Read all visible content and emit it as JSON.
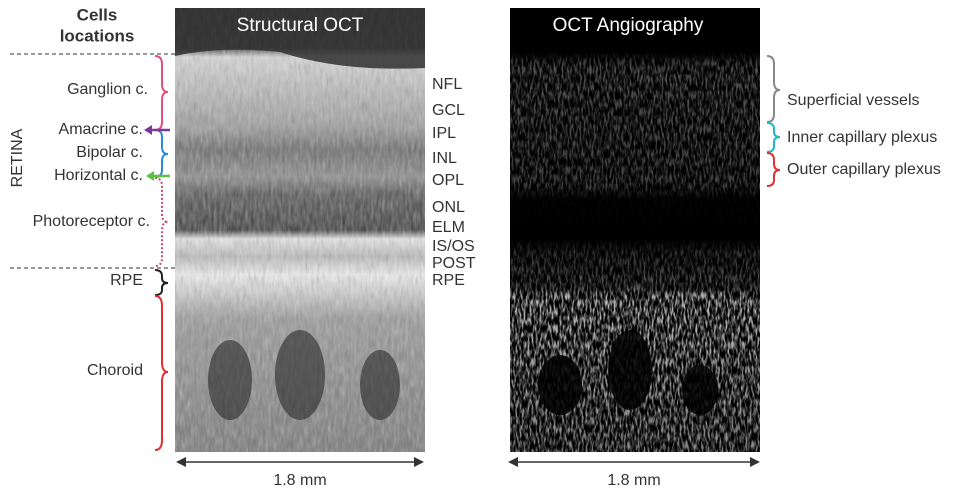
{
  "header": {
    "title_lines": [
      "Cells",
      "locations"
    ]
  },
  "panels": [
    {
      "title": "Structural OCT",
      "scale": "1.8 mm"
    },
    {
      "title": "OCT Angiography",
      "scale": "1.8 mm"
    }
  ],
  "region_label": "RETINA",
  "cell_labels": [
    "Ganglion c.",
    "Amacrine c.",
    "Bipolar c.",
    "Horizontal c.",
    "Photoreceptor c.",
    "RPE",
    "Choroid"
  ],
  "layers": [
    "NFL",
    "GCL",
    "IPL",
    "INL",
    "OPL",
    "ONL",
    "ELM",
    "IS/OS",
    "POST",
    "RPE"
  ],
  "vessel_labels": [
    "Superficial vessels",
    "Inner capillary plexus",
    "Outer capillary plexus"
  ]
}
